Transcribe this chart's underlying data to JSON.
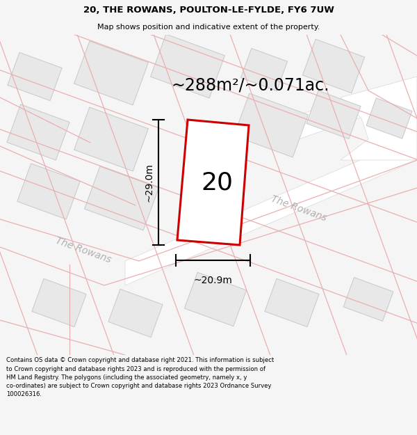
{
  "title_line1": "20, THE ROWANS, POULTON-LE-FYLDE, FY6 7UW",
  "title_line2": "Map shows position and indicative extent of the property.",
  "area_text": "~288m²/~0.071ac.",
  "label_number": "20",
  "dim_height": "~29.0m",
  "dim_width": "~20.9m",
  "street_label": "The Rowans",
  "footer": "Contains OS data © Crown copyright and database right 2021. This information is subject to Crown copyright and database rights 2023 and is reproduced with the permission of HM Land Registry. The polygons (including the associated geometry, namely x, y co-ordinates) are subject to Crown copyright and database rights 2023 Ordnance Survey 100026316.",
  "bg_color": "#f5f5f5",
  "road_color": "#ffffff",
  "building_fill": "#e8e8e8",
  "building_border": "#c8c8c8",
  "pink_color": "#e8b0b0",
  "plot_fill": "#ffffff",
  "plot_border": "#cc0000",
  "text_color": "#000000",
  "street_color": "#b0b0b0"
}
